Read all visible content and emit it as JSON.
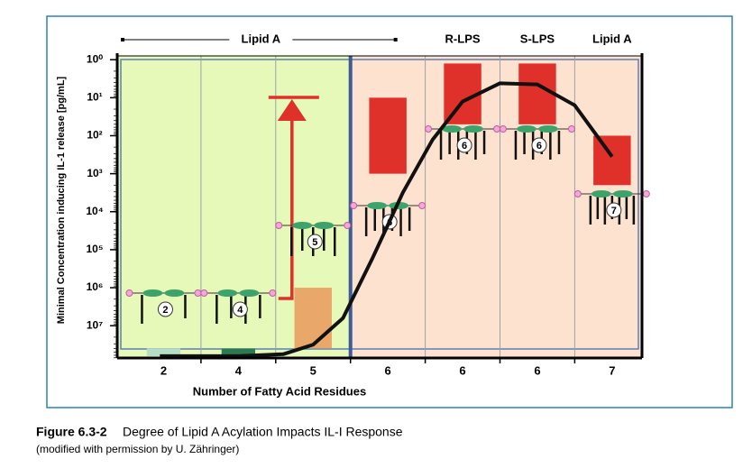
{
  "chart_data": {
    "type": "range-bar",
    "y_label": "Minimal Concentration inducing IL-1 release [pg/mL]",
    "x_label": "Number of  Fatty Acid Residues",
    "categories": [
      "2",
      "4",
      "5",
      "6",
      "6",
      "6",
      "7"
    ],
    "groups": [
      "Lipid A",
      "R-LPS",
      "S-LPS",
      "Lipid A"
    ],
    "bars": [
      [
        7.6,
        7.8
      ],
      [
        7.6,
        7.8
      ],
      [
        6,
        7.6
      ],
      [
        1,
        3
      ],
      [
        0.1,
        1.7
      ],
      [
        0.1,
        1.7
      ],
      [
        2,
        3.3
      ]
    ],
    "bar_colors": [
      "#b7dcc6",
      "#2e7a50",
      "#e9a86a",
      "#e0302a",
      "#e0302a",
      "#e0302a",
      "#e0302a"
    ],
    "curve": {
      "color": "#111111",
      "x": [
        -0.05,
        1,
        1.6,
        2.0,
        2.4,
        2.8,
        3.2,
        3.6,
        4.0,
        4.5,
        5.0,
        5.5,
        6.0
      ],
      "y": [
        7.8,
        7.8,
        7.75,
        7.5,
        6.8,
        5.2,
        3.5,
        2.1,
        1.1,
        0.62,
        0.65,
        1.2,
        2.55
      ]
    },
    "ylim": [
      7.85,
      -0.1
    ],
    "yticks": [
      {
        "value": 0,
        "label": "10⁰"
      },
      {
        "value": 1,
        "label": "10¹"
      },
      {
        "value": 2,
        "label": "10²"
      },
      {
        "value": 3,
        "label": "10³"
      },
      {
        "value": 4,
        "label": "10⁴"
      },
      {
        "value": 5,
        "label": "10⁵"
      },
      {
        "value": 6,
        "label": "10⁶"
      },
      {
        "value": 7,
        "label": "10⁷"
      }
    ],
    "grid": true
  },
  "caption": {
    "label": "Figure 6.3-2",
    "text": "Degree of Lipid A Acylation Impacts IL-I Response",
    "note": "(modified with permission by U. Zähringer)"
  }
}
